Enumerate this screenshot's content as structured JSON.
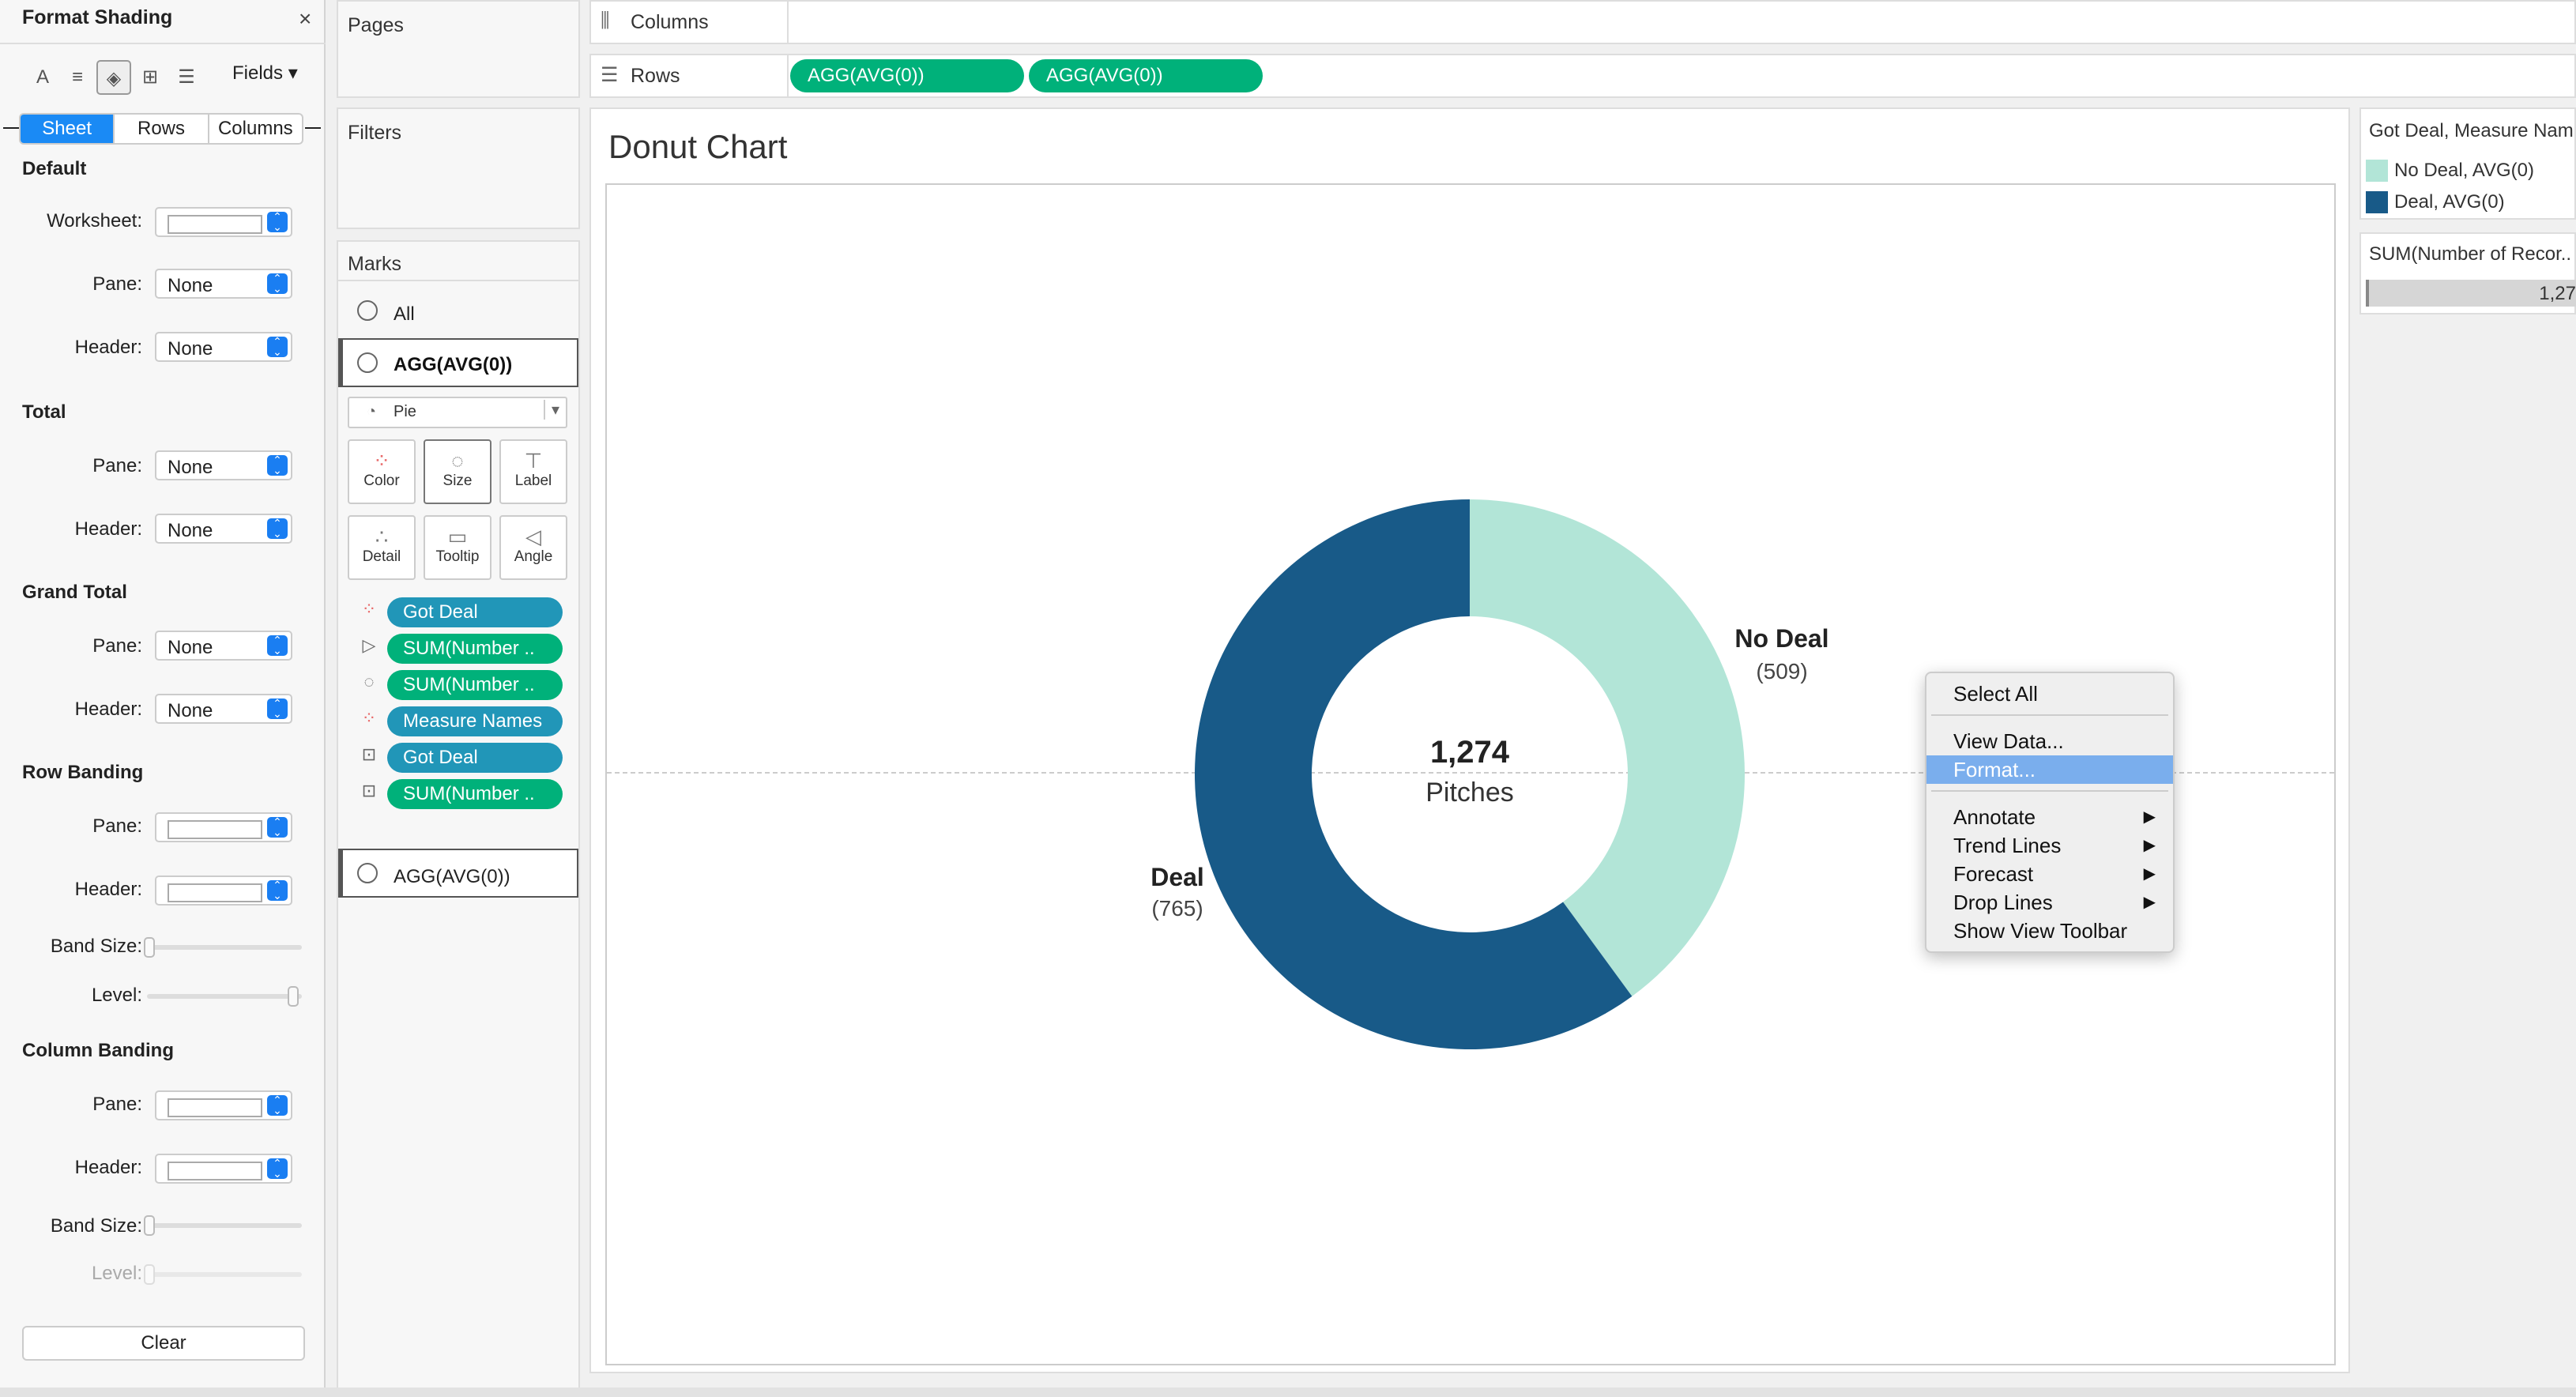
{
  "format_panel": {
    "title": "Format Shading",
    "close": "×",
    "fields_label": "Fields ▾",
    "tabs": [
      "Sheet",
      "Rows",
      "Columns"
    ],
    "sections": {
      "default": {
        "title": "Default",
        "worksheet": "Worksheet:",
        "pane": "Pane:",
        "header": "Header:",
        "pane_value": "None",
        "header_value": "None"
      },
      "total": {
        "title": "Total",
        "pane": "Pane:",
        "header": "Header:",
        "pane_value": "None",
        "header_value": "None"
      },
      "grand_total": {
        "title": "Grand Total",
        "pane": "Pane:",
        "header": "Header:",
        "pane_value": "None",
        "header_value": "None"
      },
      "row_banding": {
        "title": "Row Banding",
        "pane": "Pane:",
        "header": "Header:",
        "band_size": "Band Size:",
        "level": "Level:"
      },
      "column_banding": {
        "title": "Column Banding",
        "pane": "Pane:",
        "header": "Header:",
        "band_size": "Band Size:",
        "level": "Level:"
      }
    },
    "clear_label": "Clear"
  },
  "cards": {
    "pages": "Pages",
    "filters": "Filters",
    "marks": {
      "title": "Marks",
      "all": "All",
      "layer1": "AGG(AVG(0))",
      "mark_type": "Pie",
      "buttons": [
        "Color",
        "Size",
        "Label",
        "Detail",
        "Tooltip",
        "Angle"
      ],
      "pills": [
        {
          "label": "Got Deal",
          "color": "#2196b8"
        },
        {
          "label": "SUM(Number ..",
          "color": "#00b17a"
        },
        {
          "label": "SUM(Number ..",
          "color": "#00b17a"
        },
        {
          "label": "Measure Names",
          "color": "#2196b8"
        },
        {
          "label": "Got Deal",
          "color": "#2196b8"
        },
        {
          "label": "SUM(Number ..",
          "color": "#00b17a"
        }
      ],
      "layer2": "AGG(AVG(0))"
    }
  },
  "shelves": {
    "columns": "Columns",
    "rows": "Rows",
    "rows_pills": [
      "AGG(AVG(0))",
      "AGG(AVG(0))"
    ]
  },
  "chart": {
    "title": "Donut Chart",
    "center_value": "1,274",
    "center_label": "Pitches",
    "no_deal_label": "No Deal",
    "no_deal_value": "(509)",
    "deal_label": "Deal",
    "deal_value": "(765)"
  },
  "chart_data": {
    "type": "pie",
    "title": "Donut Chart",
    "categories": [
      "No Deal",
      "Deal"
    ],
    "values": [
      509,
      765
    ],
    "colors": [
      "#b2e5d7",
      "#185a88"
    ],
    "total": 1274
  },
  "context_menu": {
    "items": [
      "Select All",
      "View Data...",
      "Format...",
      "Annotate",
      "Trend Lines",
      "Forecast",
      "Drop Lines",
      "Show View Toolbar"
    ],
    "highlighted": "Format..."
  },
  "legend": {
    "title": "Got Deal, Measure Nam",
    "items": [
      {
        "label": "No Deal, AVG(0)",
        "color": "#b2e5d7"
      },
      {
        "label": "Deal, AVG(0)",
        "color": "#185a88"
      }
    ],
    "size_title": "SUM(Number of Recor..",
    "size_value": "1,27"
  }
}
